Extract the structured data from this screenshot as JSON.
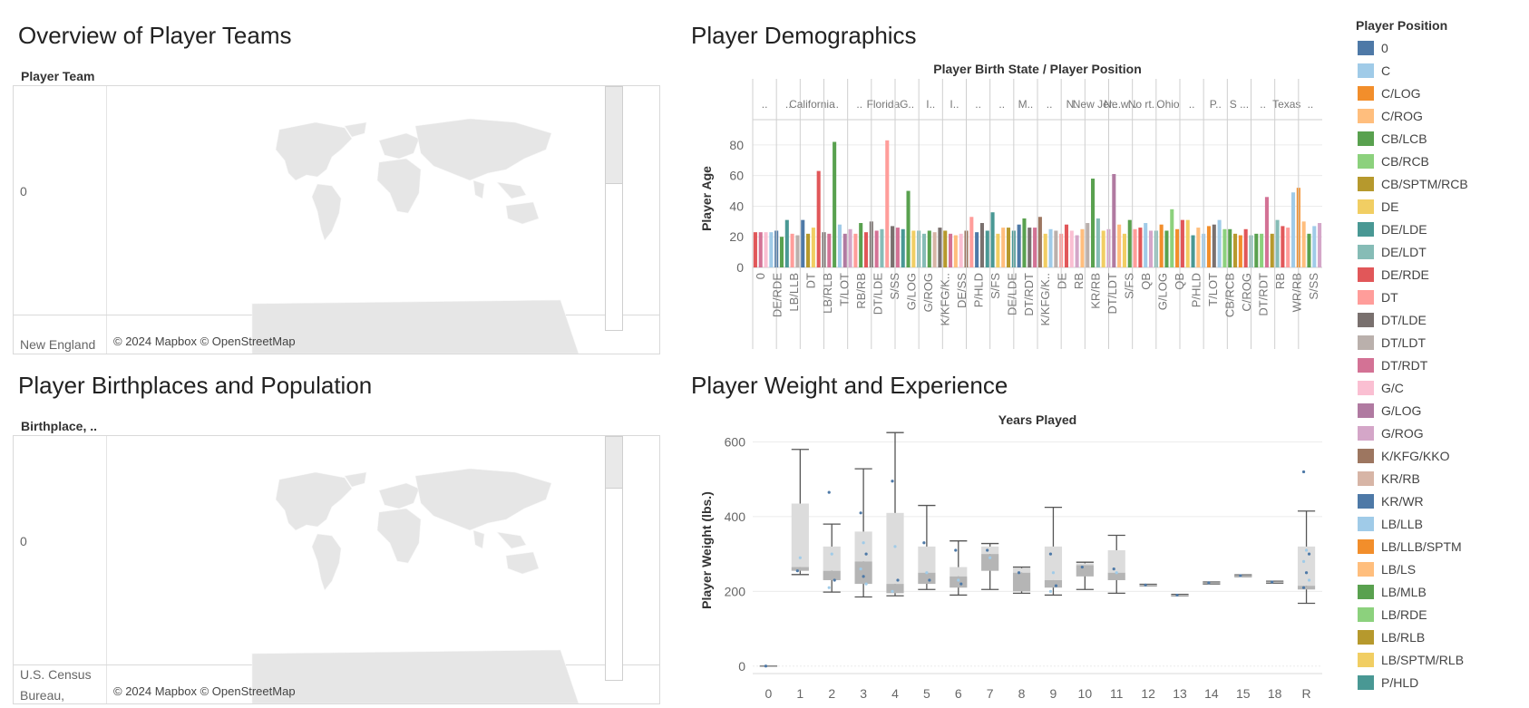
{
  "panels": {
    "teams": {
      "title": "Overview of Player Teams",
      "header": "Player Team",
      "row_labels": [
        "0",
        "New England"
      ],
      "attribution": "© 2024 Mapbox © OpenStreetMap"
    },
    "birthplaces": {
      "title": "Player Birthplaces and Population",
      "header": "Birthplace, ..",
      "row_labels": [
        "0",
        "U.S. Census",
        "Bureau,"
      ],
      "attribution": "© 2024 Mapbox © OpenStreetMap"
    },
    "demographics": {
      "title": "Player Demographics"
    },
    "weight": {
      "title": "Player Weight and Experience"
    }
  },
  "legend": {
    "title": "Player Position",
    "items": [
      {
        "label": "0",
        "color": "#4e79a7"
      },
      {
        "label": "C",
        "color": "#a0cbe8"
      },
      {
        "label": "C/LOG",
        "color": "#f28e2b"
      },
      {
        "label": "C/ROG",
        "color": "#ffbe7d"
      },
      {
        "label": "CB/LCB",
        "color": "#59a14f"
      },
      {
        "label": "CB/RCB",
        "color": "#8cd17d"
      },
      {
        "label": "CB/SPTM/RCB",
        "color": "#b6992d"
      },
      {
        "label": "DE",
        "color": "#f1ce63"
      },
      {
        "label": "DE/LDE",
        "color": "#499894"
      },
      {
        "label": "DE/LDT",
        "color": "#86bcb6"
      },
      {
        "label": "DE/RDE",
        "color": "#e15759"
      },
      {
        "label": "DT",
        "color": "#ff9d9a"
      },
      {
        "label": "DT/LDE",
        "color": "#79706e"
      },
      {
        "label": "DT/LDT",
        "color": "#bab0ac"
      },
      {
        "label": "DT/RDT",
        "color": "#d37295"
      },
      {
        "label": "G/C",
        "color": "#fabfd2"
      },
      {
        "label": "G/LOG",
        "color": "#b07aa1"
      },
      {
        "label": "G/ROG",
        "color": "#d4a6c8"
      },
      {
        "label": "K/KFG/KKO",
        "color": "#9d7660"
      },
      {
        "label": "KR/RB",
        "color": "#d7b5a6"
      },
      {
        "label": "KR/WR",
        "color": "#4e79a7"
      },
      {
        "label": "LB/LLB",
        "color": "#a0cbe8"
      },
      {
        "label": "LB/LLB/SPTM",
        "color": "#f28e2b"
      },
      {
        "label": "LB/LS",
        "color": "#ffbe7d"
      },
      {
        "label": "LB/MLB",
        "color": "#59a14f"
      },
      {
        "label": "LB/RDE",
        "color": "#8cd17d"
      },
      {
        "label": "LB/RLB",
        "color": "#b6992d"
      },
      {
        "label": "LB/SPTM/RLB",
        "color": "#f1ce63"
      },
      {
        "label": "P/HLD",
        "color": "#499894"
      }
    ]
  },
  "chart_data": [
    {
      "type": "bar",
      "title": "Player Birth State / Player Position",
      "ylabel": "Player Age",
      "ylim": [
        0,
        90
      ],
      "yticks": [
        0,
        20,
        40,
        60,
        80
      ],
      "state_labels": [
        "..",
        "..",
        "California",
        "..",
        "..",
        "Florida",
        "G..",
        "I..",
        "I..",
        "..",
        "..",
        "M..",
        "..",
        "N..",
        "New Jer...",
        "Ne w...",
        "No rt...",
        "Ohio",
        "..",
        "P..",
        "S ...",
        "..",
        "Texas",
        ".."
      ],
      "position_labels": [
        "0",
        "DE/RDE",
        "LB/LLB",
        "DT",
        "LB/RLB",
        "T/LOT",
        "RB/RB",
        "DT/LDE",
        "S/SS",
        "G/LOG",
        "G/ROG",
        "K/KFG/K..",
        "DE/SS",
        "P/HLD",
        "S/FS",
        "DE/LDE",
        "DT/RDT",
        "K/KFG/K..",
        "DE",
        "RB",
        "KR/RB",
        "DT/LDT",
        "S/FS",
        "QB",
        "G/LOG",
        "QB",
        "P/HLD",
        "T/LOT",
        "CB/RCB",
        "C/ROG",
        "DT/RDT",
        "RB",
        "WR/RB",
        "S/SS"
      ],
      "values": [
        23,
        23,
        23,
        23,
        24,
        20,
        31,
        22,
        21,
        31,
        22,
        26,
        63,
        23,
        22,
        82,
        28,
        22,
        25,
        22,
        29,
        23,
        30,
        24,
        25,
        83,
        27,
        26,
        25,
        50,
        24,
        24,
        22,
        24,
        23,
        26,
        24,
        22,
        21,
        22,
        24,
        33,
        23,
        29,
        24,
        36,
        22,
        26,
        26,
        24,
        28,
        32,
        26,
        26,
        33,
        22,
        25,
        24,
        22,
        28,
        24,
        21,
        25,
        29,
        58,
        32,
        24,
        25,
        61,
        28,
        22,
        31,
        25,
        26,
        29,
        24,
        24,
        28,
        24,
        38,
        25,
        31,
        31,
        21,
        26,
        22,
        27,
        28,
        31,
        25,
        25,
        22,
        21,
        25,
        21,
        22,
        22,
        46,
        22,
        31,
        27,
        26,
        49,
        52,
        30,
        22,
        27,
        29
      ],
      "colors": [
        "#e15759",
        "#d37295",
        "#fabfd2",
        "#a0cbe8",
        "#4e79a7",
        "#59a14f",
        "#499894",
        "#ff9d9a",
        "#bab0ac",
        "#4e79a7",
        "#b6992d",
        "#f1ce63",
        "#e15759",
        "#79706e",
        "#d37295",
        "#59a14f",
        "#a0cbe8",
        "#b07aa1",
        "#d4a6c8",
        "#ff9d9a",
        "#59a14f",
        "#e15759",
        "#79706e",
        "#d37295",
        "#86bcb6",
        "#ff9d9a",
        "#79706e",
        "#d37295",
        "#499894",
        "#59a14f",
        "#f1ce63",
        "#86bcb6",
        "#86bcb6",
        "#59a14f",
        "#d7b5a6",
        "#79706e",
        "#b6992d",
        "#d37295",
        "#ffbe7d",
        "#fabfd2",
        "#9d7660",
        "#ff9d9a",
        "#4e79a7",
        "#79706e",
        "#499894",
        "#499894",
        "#f1ce63",
        "#ffbe7d",
        "#b6992d",
        "#499894",
        "#4e79a7",
        "#59a14f",
        "#79706e",
        "#d37295",
        "#9d7660",
        "#f1ce63",
        "#a0cbe8",
        "#bab0ac",
        "#ff9d9a",
        "#e15759",
        "#fabfd2",
        "#d4a6c8",
        "#ffbe7d",
        "#bab0ac",
        "#59a14f",
        "#86bcb6",
        "#f1ce63",
        "#d4a6c8",
        "#b07aa1",
        "#ffbe7d",
        "#f1ce63",
        "#59a14f",
        "#ff9d9a",
        "#e15759",
        "#a0cbe8",
        "#d4a6c8",
        "#86bcb6",
        "#f28e2b",
        "#59a14f",
        "#8cd17d",
        "#f28e2b",
        "#e15759",
        "#f1ce63",
        "#499894",
        "#ffbe7d",
        "#a0cbe8",
        "#f28e2b",
        "#79706e",
        "#a0cbe8",
        "#8cd17d",
        "#59a14f",
        "#b6992d",
        "#f28e2b",
        "#e15759",
        "#86bcb6",
        "#59a14f",
        "#8cd17d",
        "#d37295",
        "#b6992d",
        "#86bcb6",
        "#e15759",
        "#ff9d9a",
        "#a0cbe8",
        "#f28e2b",
        "#ffbe7d",
        "#59a14f",
        "#a0cbe8",
        "#d4a6c8"
      ]
    },
    {
      "type": "box",
      "title": "Years Played",
      "ylabel": "Player Weight (lbs.)",
      "ylim": [
        -20,
        640
      ],
      "yticks": [
        0,
        200,
        400,
        600
      ],
      "categories": [
        "0",
        "1",
        "2",
        "3",
        "4",
        "5",
        "6",
        "7",
        "8",
        "9",
        "10",
        "11",
        "12",
        "13",
        "14",
        "15",
        "18",
        "R"
      ],
      "boxes": [
        {
          "min": 0,
          "q1": 0,
          "median": 0,
          "q3": 0,
          "max": 0,
          "points": [
            0
          ]
        },
        {
          "min": 245,
          "q1": 255,
          "median": 265,
          "q3": 435,
          "max": 580,
          "points": [
            255,
            290
          ]
        },
        {
          "min": 198,
          "q1": 230,
          "median": 255,
          "q3": 320,
          "max": 380,
          "points": [
            465,
            300,
            230,
            210
          ]
        },
        {
          "min": 185,
          "q1": 220,
          "median": 280,
          "q3": 360,
          "max": 528,
          "points": [
            410,
            330,
            300,
            260,
            240,
            220
          ]
        },
        {
          "min": 188,
          "q1": 195,
          "median": 220,
          "q3": 410,
          "max": 625,
          "points": [
            495,
            320,
            230,
            200
          ]
        },
        {
          "min": 205,
          "q1": 220,
          "median": 250,
          "q3": 320,
          "max": 430,
          "points": [
            330,
            250,
            230
          ]
        },
        {
          "min": 190,
          "q1": 210,
          "median": 240,
          "q3": 265,
          "max": 335,
          "points": [
            310,
            230,
            220
          ]
        },
        {
          "min": 205,
          "q1": 255,
          "median": 300,
          "q3": 320,
          "max": 328,
          "points": [
            310,
            290
          ]
        },
        {
          "min": 195,
          "q1": 200,
          "median": 250,
          "q3": 262,
          "max": 265,
          "points": [
            250
          ]
        },
        {
          "min": 190,
          "q1": 210,
          "median": 230,
          "q3": 320,
          "max": 425,
          "points": [
            300,
            250,
            215,
            200
          ]
        },
        {
          "min": 205,
          "q1": 240,
          "median": 270,
          "q3": 275,
          "max": 278,
          "points": [
            265
          ]
        },
        {
          "min": 195,
          "q1": 230,
          "median": 250,
          "q3": 310,
          "max": 350,
          "points": [
            260,
            250
          ]
        },
        {
          "min": 215,
          "q1": 216,
          "median": 217,
          "q3": 218,
          "max": 219,
          "points": [
            217
          ]
        },
        {
          "min": 188,
          "q1": 189,
          "median": 190,
          "q3": 191,
          "max": 192,
          "points": [
            190
          ]
        },
        {
          "min": 220,
          "q1": 221,
          "median": 223,
          "q3": 224,
          "max": 225,
          "points": [
            223
          ]
        },
        {
          "min": 240,
          "q1": 241,
          "median": 242,
          "q3": 243,
          "max": 244,
          "points": [
            242
          ]
        },
        {
          "min": 222,
          "q1": 223,
          "median": 225,
          "q3": 226,
          "max": 227,
          "points": [
            225
          ]
        },
        {
          "min": 168,
          "q1": 205,
          "median": 215,
          "q3": 320,
          "max": 415,
          "points": [
            520,
            310,
            300,
            280,
            250,
            230,
            210
          ]
        }
      ]
    }
  ]
}
